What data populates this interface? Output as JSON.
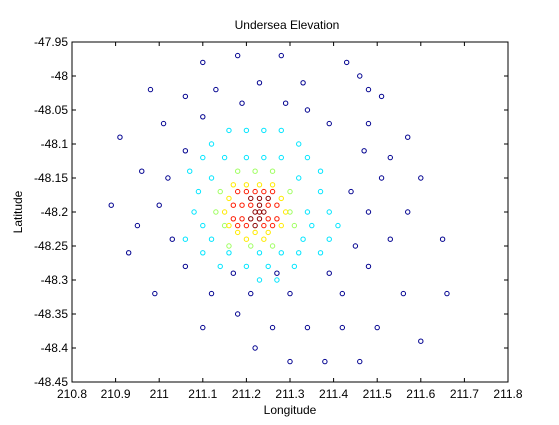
{
  "chart_data": {
    "type": "scatter",
    "title": "Undersea Elevation",
    "xlabel": "Longitude",
    "ylabel": "Latitude",
    "xlim": [
      210.8,
      211.8
    ],
    "ylim": [
      -48.45,
      -47.95
    ],
    "x_ticks": [
      "210.8",
      "210.9",
      "211",
      "211.1",
      "211.2",
      "211.3",
      "211.4",
      "211.5",
      "211.6",
      "211.7",
      "211.8"
    ],
    "y_ticks": [
      "-47.95",
      "-48",
      "-48.05",
      "-48.1",
      "-48.15",
      "-48.2",
      "-48.25",
      "-48.3",
      "-48.35",
      "-48.4",
      "-48.45"
    ],
    "grid": false,
    "legend": "none",
    "marker": "open circle",
    "colormap": "jet (blue = low, red = high)",
    "colors": {
      "dark-blue": "#00008f",
      "cyan": "#00e5ff",
      "green-yellow": "#9fff60",
      "yellow": "#ffea00",
      "red": "#ff1a00",
      "dark-red": "#8b0000"
    },
    "series": [
      {
        "color": "dark-blue",
        "points": [
          [
            211.18,
            -47.97
          ],
          [
            211.28,
            -47.97
          ],
          [
            211.1,
            -47.98
          ],
          [
            211.43,
            -47.98
          ],
          [
            211.46,
            -48.0
          ],
          [
            211.23,
            -48.01
          ],
          [
            211.33,
            -48.01
          ],
          [
            210.98,
            -48.02
          ],
          [
            211.13,
            -48.02
          ],
          [
            211.48,
            -48.02
          ],
          [
            211.06,
            -48.03
          ],
          [
            211.51,
            -48.03
          ],
          [
            211.19,
            -48.04
          ],
          [
            211.29,
            -48.04
          ],
          [
            211.34,
            -48.05
          ],
          [
            211.1,
            -48.06
          ],
          [
            211.01,
            -48.07
          ],
          [
            211.39,
            -48.07
          ],
          [
            211.48,
            -48.07
          ],
          [
            210.91,
            -48.09
          ],
          [
            211.57,
            -48.09
          ],
          [
            211.06,
            -48.11
          ],
          [
            211.47,
            -48.11
          ],
          [
            211.53,
            -48.12
          ],
          [
            210.96,
            -48.14
          ],
          [
            211.6,
            -48.15
          ],
          [
            211.51,
            -48.15
          ],
          [
            211.02,
            -48.15
          ],
          [
            211.44,
            -48.17
          ],
          [
            210.89,
            -48.19
          ],
          [
            211.0,
            -48.19
          ],
          [
            211.48,
            -48.2
          ],
          [
            211.57,
            -48.2
          ],
          [
            210.95,
            -48.22
          ],
          [
            211.53,
            -48.24
          ],
          [
            211.65,
            -48.24
          ],
          [
            211.03,
            -48.24
          ],
          [
            211.45,
            -48.25
          ],
          [
            210.93,
            -48.26
          ],
          [
            211.06,
            -48.28
          ],
          [
            211.48,
            -48.28
          ],
          [
            211.17,
            -48.29
          ],
          [
            211.27,
            -48.29
          ],
          [
            211.39,
            -48.29
          ],
          [
            211.56,
            -48.32
          ],
          [
            211.66,
            -48.32
          ],
          [
            210.99,
            -48.32
          ],
          [
            211.12,
            -48.32
          ],
          [
            211.21,
            -48.32
          ],
          [
            211.3,
            -48.32
          ],
          [
            211.42,
            -48.32
          ],
          [
            211.18,
            -48.35
          ],
          [
            211.1,
            -48.37
          ],
          [
            211.26,
            -48.37
          ],
          [
            211.34,
            -48.37
          ],
          [
            211.42,
            -48.37
          ],
          [
            211.5,
            -48.37
          ],
          [
            211.6,
            -48.39
          ],
          [
            211.22,
            -48.4
          ],
          [
            211.3,
            -48.42
          ],
          [
            211.38,
            -48.42
          ],
          [
            211.46,
            -48.42
          ]
        ]
      },
      {
        "color": "cyan",
        "points": [
          [
            211.16,
            -48.08
          ],
          [
            211.2,
            -48.08
          ],
          [
            211.24,
            -48.08
          ],
          [
            211.28,
            -48.08
          ],
          [
            211.12,
            -48.1
          ],
          [
            211.32,
            -48.1
          ],
          [
            211.1,
            -48.12
          ],
          [
            211.15,
            -48.12
          ],
          [
            211.2,
            -48.12
          ],
          [
            211.24,
            -48.12
          ],
          [
            211.28,
            -48.12
          ],
          [
            211.34,
            -48.12
          ],
          [
            211.07,
            -48.14
          ],
          [
            211.37,
            -48.14
          ],
          [
            211.12,
            -48.15
          ],
          [
            211.32,
            -48.15
          ],
          [
            211.09,
            -48.17
          ],
          [
            211.37,
            -48.17
          ],
          [
            211.08,
            -48.2
          ],
          [
            211.34,
            -48.2
          ],
          [
            211.39,
            -48.2
          ],
          [
            211.1,
            -48.22
          ],
          [
            211.35,
            -48.22
          ],
          [
            211.41,
            -48.22
          ],
          [
            211.06,
            -48.24
          ],
          [
            211.12,
            -48.24
          ],
          [
            211.33,
            -48.24
          ],
          [
            211.39,
            -48.24
          ],
          [
            211.1,
            -48.26
          ],
          [
            211.16,
            -48.26
          ],
          [
            211.23,
            -48.26
          ],
          [
            211.28,
            -48.26
          ],
          [
            211.32,
            -48.26
          ],
          [
            211.37,
            -48.26
          ],
          [
            211.14,
            -48.28
          ],
          [
            211.2,
            -48.28
          ],
          [
            211.25,
            -48.28
          ],
          [
            211.31,
            -48.28
          ],
          [
            211.23,
            -48.3
          ],
          [
            211.27,
            -48.3
          ]
        ]
      },
      {
        "color": "green-yellow",
        "points": [
          [
            211.18,
            -48.14
          ],
          [
            211.22,
            -48.14
          ],
          [
            211.26,
            -48.14
          ],
          [
            211.14,
            -48.17
          ],
          [
            211.3,
            -48.17
          ],
          [
            211.13,
            -48.2
          ],
          [
            211.3,
            -48.2
          ],
          [
            211.15,
            -48.22
          ],
          [
            211.31,
            -48.22
          ],
          [
            211.16,
            -48.25
          ],
          [
            211.21,
            -48.25
          ],
          [
            211.26,
            -48.25
          ]
        ]
      },
      {
        "color": "yellow",
        "points": [
          [
            211.17,
            -48.16
          ],
          [
            211.2,
            -48.16
          ],
          [
            211.23,
            -48.16
          ],
          [
            211.26,
            -48.16
          ],
          [
            211.28,
            -48.18
          ],
          [
            211.16,
            -48.18
          ],
          [
            211.15,
            -48.2
          ],
          [
            211.29,
            -48.2
          ],
          [
            211.16,
            -48.22
          ],
          [
            211.28,
            -48.22
          ],
          [
            211.18,
            -48.23
          ],
          [
            211.22,
            -48.23
          ],
          [
            211.25,
            -48.23
          ],
          [
            211.2,
            -48.24
          ],
          [
            211.24,
            -48.24
          ]
        ]
      },
      {
        "color": "red",
        "points": [
          [
            211.18,
            -48.17
          ],
          [
            211.2,
            -48.17
          ],
          [
            211.22,
            -48.17
          ],
          [
            211.24,
            -48.17
          ],
          [
            211.26,
            -48.17
          ],
          [
            211.17,
            -48.19
          ],
          [
            211.19,
            -48.19
          ],
          [
            211.21,
            -48.19
          ],
          [
            211.25,
            -48.19
          ],
          [
            211.27,
            -48.19
          ],
          [
            211.17,
            -48.21
          ],
          [
            211.19,
            -48.21
          ],
          [
            211.25,
            -48.21
          ],
          [
            211.27,
            -48.21
          ],
          [
            211.18,
            -48.22
          ],
          [
            211.2,
            -48.22
          ],
          [
            211.24,
            -48.22
          ],
          [
            211.26,
            -48.22
          ]
        ]
      },
      {
        "color": "dark-red",
        "points": [
          [
            211.21,
            -48.18
          ],
          [
            211.23,
            -48.18
          ],
          [
            211.25,
            -48.18
          ],
          [
            211.22,
            -48.2
          ],
          [
            211.23,
            -48.19
          ],
          [
            211.24,
            -48.2
          ],
          [
            211.21,
            -48.21
          ],
          [
            211.23,
            -48.21
          ],
          [
            211.22,
            -48.22
          ],
          [
            211.23,
            -48.2
          ]
        ]
      }
    ]
  }
}
